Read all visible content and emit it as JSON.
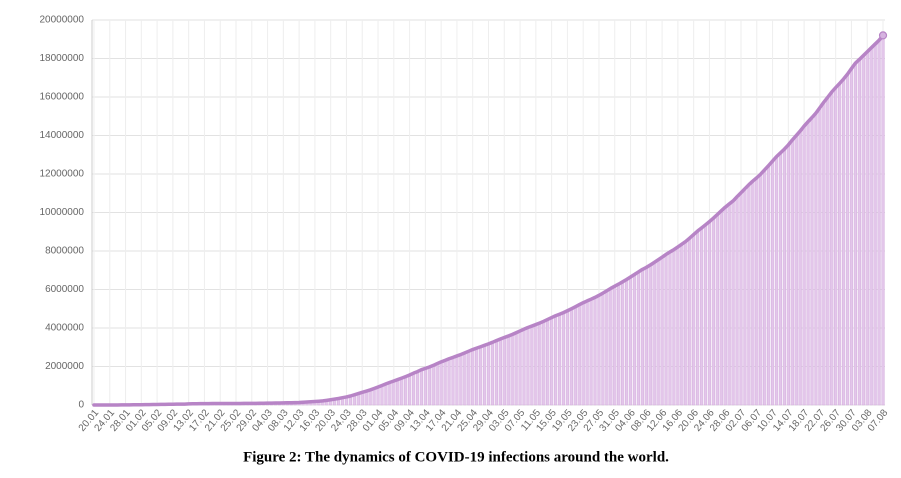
{
  "chart_data": {
    "type": "bar-line",
    "title": "Figure 2: The dynamics of COVID-19 infections around the world.",
    "color": "#e3c6ea",
    "line_color": "#b784c6",
    "ylim": [
      0,
      20000000
    ],
    "yticks": [
      0,
      2000000,
      4000000,
      6000000,
      8000000,
      10000000,
      12000000,
      14000000,
      16000000,
      18000000,
      20000000
    ],
    "grid": true,
    "categories": [
      "20.01",
      null,
      null,
      null,
      "24.01",
      null,
      null,
      null,
      "28.01",
      null,
      null,
      null,
      "01.02",
      null,
      null,
      null,
      "05.02",
      null,
      null,
      null,
      "09.02",
      null,
      null,
      null,
      "13.02",
      null,
      null,
      null,
      "17.02",
      null,
      null,
      null,
      "21.02",
      null,
      null,
      null,
      "25.02",
      null,
      null,
      null,
      "29.02",
      null,
      null,
      null,
      "04.03",
      null,
      null,
      null,
      "08.03",
      null,
      null,
      null,
      "12.03",
      null,
      null,
      null,
      "16.03",
      null,
      null,
      null,
      "20.03",
      null,
      null,
      null,
      "24.03",
      null,
      null,
      null,
      "28.03",
      null,
      null,
      null,
      "01.04",
      null,
      null,
      null,
      "05.04",
      null,
      null,
      null,
      "09.04",
      null,
      null,
      null,
      "13.04",
      null,
      null,
      null,
      "17.04",
      null,
      null,
      null,
      "21.04",
      null,
      null,
      null,
      "25.04",
      null,
      null,
      null,
      "29.04",
      null,
      null,
      null,
      "03.05",
      null,
      null,
      null,
      "07.05",
      null,
      null,
      null,
      "11.05",
      null,
      null,
      null,
      "15.05",
      null,
      null,
      null,
      "19.05",
      null,
      null,
      null,
      "23.05",
      null,
      null,
      null,
      "27.05",
      null,
      null,
      null,
      "31.05",
      null,
      null,
      null,
      "04.06",
      null,
      null,
      null,
      "08.06",
      null,
      null,
      null,
      "12.06",
      null,
      null,
      null,
      "16.06",
      null,
      null,
      null,
      "20.06",
      null,
      null,
      null,
      "24.06",
      null,
      null,
      null,
      "28.06",
      null,
      null,
      null,
      "02.07",
      null,
      null,
      null,
      "06.07",
      null,
      null,
      null,
      "10.07",
      null,
      null,
      null,
      "14.07",
      null,
      null,
      null,
      "18.07",
      null,
      null,
      null,
      "22.07",
      null,
      null,
      null,
      "26.07",
      null,
      null,
      null,
      "30.07",
      null,
      null,
      null,
      "03.08",
      null,
      null,
      null,
      "07.08"
    ],
    "values": [
      300,
      400,
      600,
      900,
      1300,
      2000,
      2800,
      4500,
      6000,
      7800,
      9800,
      11900,
      14500,
      17400,
      20600,
      24500,
      28300,
      31500,
      34900,
      37600,
      40600,
      43100,
      45200,
      46600,
      60400,
      64400,
      67100,
      69300,
      71400,
      73300,
      75200,
      75700,
      76800,
      77800,
      78800,
      79400,
      80100,
      80800,
      81700,
      83000,
      85200,
      87500,
      89700,
      92400,
      94800,
      97600,
      101500,
      105600,
      109600,
      113800,
      118600,
      125900,
      128300,
      145200,
      156100,
      167400,
      181500,
      197100,
      214900,
      242500,
      272200,
      304500,
      337000,
      378200,
      418000,
      467600,
      529600,
      593300,
      660700,
      720100,
      782400,
      857500,
      932600,
      1013000,
      1095000,
      1175000,
      1249000,
      1321000,
      1396000,
      1475000,
      1558000,
      1653000,
      1735000,
      1834000,
      1904000,
      1975000,
      2056000,
      2152000,
      2240000,
      2317000,
      2402000,
      2472000,
      2549000,
      2624000,
      2708000,
      2795000,
      2881000,
      2954000,
      3027000,
      3100000,
      3177000,
      3256000,
      3344000,
      3426000,
      3505000,
      3581000,
      3662000,
      3755000,
      3847000,
      3939000,
      4026000,
      4101000,
      4178000,
      4261000,
      4347000,
      4443000,
      4542000,
      4635000,
      4716000,
      4799000,
      4896000,
      4997000,
      5102000,
      5209000,
      5312000,
      5408000,
      5496000,
      5590000,
      5695000,
      5813000,
      5934000,
      6061000,
      6173000,
      6281000,
      6400000,
      6520000,
      6649000,
      6779000,
      6914000,
      7045000,
      7148000,
      7273000,
      7403000,
      7543000,
      7681000,
      7823000,
      7951000,
      8073000,
      8213000,
      8355000,
      8496000,
      8673000,
      8855000,
      9037000,
      9196000,
      9360000,
      9528000,
      9705000,
      9895000,
      10086000,
      10275000,
      10440000,
      10603000,
      10822000,
      11027000,
      11237000,
      11444000,
      11632000,
      11806000,
      11995000,
      12218000,
      12441000,
      12672000,
      12903000,
      13099000,
      13293000,
      13512000,
      13766000,
      13997000,
      14233000,
      14489000,
      14717000,
      14935000,
      15167000,
      15449000,
      15732000,
      15991000,
      16259000,
      16486000,
      16706000,
      16935000,
      17187000,
      17479000,
      17760000,
      17950000,
      18150000,
      18350000,
      18550000,
      18750000,
      18950000,
      19200000
    ]
  }
}
